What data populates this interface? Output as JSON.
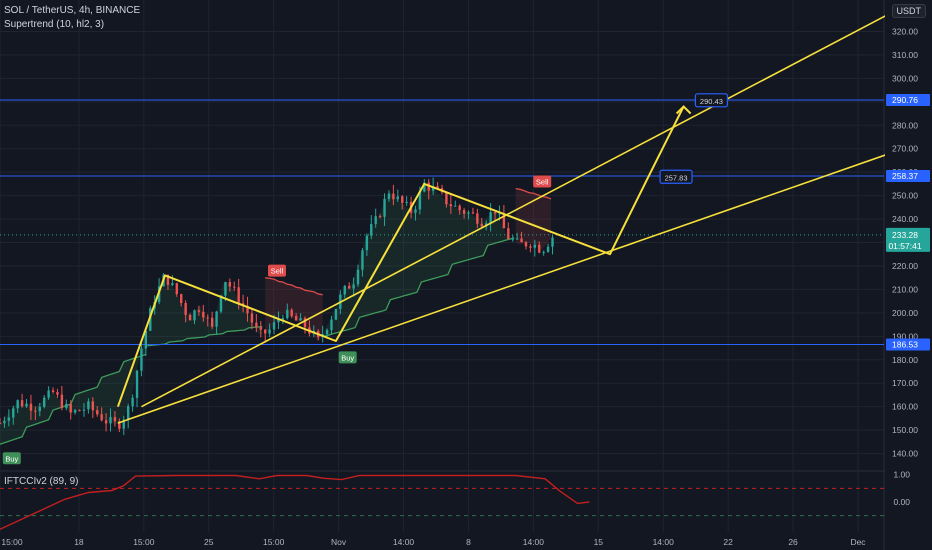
{
  "legend": {
    "symbol": "SOL / TetherUS, 4h, BINANCE",
    "indicator": "Supertrend (10, hl2, 3)",
    "oscillator": "IFTCCIv2 (89, 9)"
  },
  "currency": "USDT",
  "colors": {
    "background": "#131722",
    "grid": "#1f2430",
    "bull": "#26a69a",
    "bear": "#ef5350",
    "channel": "#f7e03c",
    "hline": "#2962ff",
    "st_green": "#3d9b5a",
    "st_red": "#e04b4b",
    "osc": "#c21f1f"
  },
  "chart_data": [
    {
      "type": "candlestick",
      "title": "SOL / TetherUS, 4h, BINANCE",
      "ylim": [
        133,
        330
      ],
      "y_ticks": [
        140,
        150,
        160,
        170,
        180,
        190,
        200,
        210,
        220,
        230,
        240,
        250,
        260,
        270,
        280,
        290,
        300,
        310,
        320
      ],
      "y_tick_labels": [
        "140.00",
        "150.00",
        "160.00",
        "170.00",
        "180.00",
        "190.00",
        "200.00",
        "210.00",
        "220.00",
        "230.00",
        "240.00",
        "250.00",
        "260.00",
        "270.00",
        "280.00",
        "290.00",
        "300.00",
        "310.00",
        "320.00"
      ],
      "x_ticks": [
        "15:00",
        "18",
        "15:00",
        "25",
        "15:00",
        "Nov",
        "14:00",
        "8",
        "14:00",
        "15",
        "14:00",
        "22",
        "26",
        "Dec"
      ],
      "horizontal_levels": [
        290.76,
        258.37,
        186.53
      ],
      "current_price": 233.28,
      "countdown": "01:57:41",
      "price_path": [
        {
          "t": 0,
          "p": 153
        },
        {
          "t": 6,
          "p": 162
        },
        {
          "t": 12,
          "p": 160
        },
        {
          "t": 18,
          "p": 166
        },
        {
          "t": 24,
          "p": 157
        },
        {
          "t": 30,
          "p": 160
        },
        {
          "t": 36,
          "p": 154
        },
        {
          "t": 40,
          "p": 152
        },
        {
          "t": 44,
          "p": 160
        },
        {
          "t": 48,
          "p": 185
        },
        {
          "t": 52,
          "p": 205
        },
        {
          "t": 56,
          "p": 216
        },
        {
          "t": 60,
          "p": 208
        },
        {
          "t": 64,
          "p": 198
        },
        {
          "t": 68,
          "p": 203
        },
        {
          "t": 72,
          "p": 193
        },
        {
          "t": 76,
          "p": 215
        },
        {
          "t": 80,
          "p": 208
        },
        {
          "t": 84,
          "p": 200
        },
        {
          "t": 88,
          "p": 190
        },
        {
          "t": 92,
          "p": 193
        },
        {
          "t": 96,
          "p": 200
        },
        {
          "t": 100,
          "p": 197
        },
        {
          "t": 104,
          "p": 194
        },
        {
          "t": 108,
          "p": 188
        },
        {
          "t": 112,
          "p": 197
        },
        {
          "t": 116,
          "p": 208
        },
        {
          "t": 120,
          "p": 214
        },
        {
          "t": 124,
          "p": 232
        },
        {
          "t": 128,
          "p": 240
        },
        {
          "t": 132,
          "p": 252
        },
        {
          "t": 136,
          "p": 247
        },
        {
          "t": 140,
          "p": 243
        },
        {
          "t": 144,
          "p": 255
        },
        {
          "t": 148,
          "p": 252
        },
        {
          "t": 152,
          "p": 247
        },
        {
          "t": 156,
          "p": 244
        },
        {
          "t": 160,
          "p": 242
        },
        {
          "t": 164,
          "p": 239
        },
        {
          "t": 168,
          "p": 244
        },
        {
          "t": 172,
          "p": 233
        },
        {
          "t": 176,
          "p": 229
        },
        {
          "t": 180,
          "p": 230
        },
        {
          "t": 184,
          "p": 227
        },
        {
          "t": 188,
          "p": 233.28
        }
      ],
      "supertrend": [
        {
          "from": 0,
          "to": 50,
          "dir": "up",
          "start": 144,
          "end": 186
        },
        {
          "from": 50,
          "to": 90,
          "dir": "up",
          "start": 186,
          "end": 195
        },
        {
          "from": 90,
          "to": 110,
          "dir": "down",
          "start": 215,
          "end": 207
        },
        {
          "from": 110,
          "to": 175,
          "dir": "up",
          "start": 190,
          "end": 236
        },
        {
          "from": 175,
          "to": 188,
          "dir": "down",
          "start": 253,
          "end": 248
        }
      ],
      "signals": [
        {
          "label": "Buy",
          "t": 4,
          "price": 138,
          "kind": "buy"
        },
        {
          "label": "Sell",
          "t": 94,
          "price": 218,
          "kind": "sell"
        },
        {
          "label": "Buy",
          "t": 118,
          "price": 181,
          "kind": "buy"
        },
        {
          "label": "Sell",
          "t": 184,
          "price": 256,
          "kind": "sell"
        }
      ],
      "annotations": [
        {
          "label": "257.83",
          "price": 257.83
        },
        {
          "label": "290.43",
          "price": 290.43
        }
      ],
      "channel": {
        "upper": [
          {
            "t": 48,
            "p": 160
          },
          {
            "t": 301,
            "p": 327
          }
        ],
        "lower": [
          {
            "t": 40,
            "p": 153
          },
          {
            "t": 302,
            "p": 268
          }
        ]
      },
      "zigzag": [
        {
          "t": 40,
          "p": 160
        },
        {
          "t": 56,
          "p": 216
        },
        {
          "t": 114,
          "p": 188
        },
        {
          "t": 144,
          "p": 255
        },
        {
          "t": 207,
          "p": 225
        },
        {
          "t": 220,
          "p": 258
        },
        {
          "t": 232,
          "p": 288
        }
      ]
    },
    {
      "type": "line",
      "title": "IFTCCIv2 (89, 9)",
      "ylim": [
        -1.1,
        1.1
      ],
      "y_ticks": [
        1.0,
        0.0
      ],
      "y_tick_labels": [
        "1.00",
        "0.00"
      ],
      "levels": [
        0.5,
        -0.5
      ],
      "series": [
        {
          "values": [
            {
              "t": 0,
              "v": -1.0
            },
            {
              "t": 10,
              "v": -0.5
            },
            {
              "t": 22,
              "v": 0.1
            },
            {
              "t": 30,
              "v": 0.35
            },
            {
              "t": 38,
              "v": 0.42
            },
            {
              "t": 42,
              "v": 0.6
            },
            {
              "t": 46,
              "v": 0.95
            },
            {
              "t": 60,
              "v": 0.97
            },
            {
              "t": 80,
              "v": 0.97
            },
            {
              "t": 88,
              "v": 0.85
            },
            {
              "t": 94,
              "v": 0.97
            },
            {
              "t": 104,
              "v": 0.97
            },
            {
              "t": 110,
              "v": 0.87
            },
            {
              "t": 116,
              "v": 0.82
            },
            {
              "t": 122,
              "v": 0.97
            },
            {
              "t": 150,
              "v": 0.97
            },
            {
              "t": 175,
              "v": 0.97
            },
            {
              "t": 185,
              "v": 0.85
            },
            {
              "t": 190,
              "v": 0.4
            },
            {
              "t": 196,
              "v": -0.05
            },
            {
              "t": 200,
              "v": 0.0
            }
          ]
        }
      ]
    }
  ]
}
